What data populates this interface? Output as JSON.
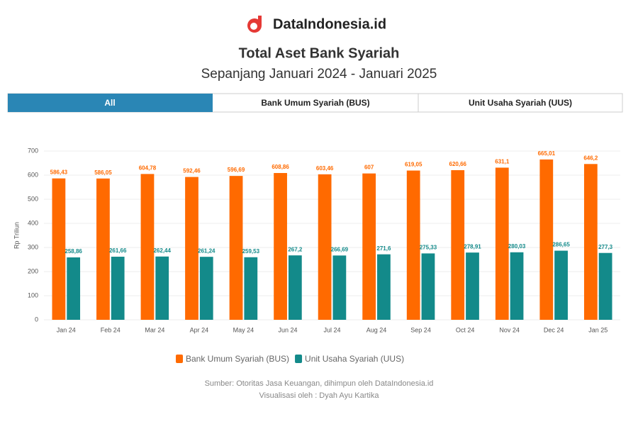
{
  "header": {
    "brand": "DataIndonesia.id",
    "title": "Total Aset Bank Syariah",
    "subtitle": "Sepanjang Januari 2024 - Januari 2025"
  },
  "tabs": [
    "All",
    "Bank Umum Syariah (BUS)",
    "Unit Usaha Syariah (UUS)"
  ],
  "chart_data": {
    "type": "bar",
    "y_label": "Rp Triliun",
    "categories": [
      "Jan 24",
      "Feb 24",
      "Mar 24",
      "Apr 24",
      "May 24",
      "Jun 24",
      "Jul 24",
      "Aug 24",
      "Sep 24",
      "Oct 24",
      "Nov 24",
      "Dec 24",
      "Jan 25"
    ],
    "series": [
      {
        "name": "Bank Umum Syariah (BUS)",
        "color": "#ff6a00",
        "values": [
          586.43,
          586.05,
          604.78,
          592.46,
          596.69,
          608.86,
          603.46,
          607,
          619.05,
          620.66,
          631.1,
          665.01,
          646.2
        ],
        "value_labels": [
          "586,43",
          "586,05",
          "604,78",
          "592,46",
          "596,69",
          "608,86",
          "603,46",
          "607",
          "619,05",
          "620,66",
          "631,1",
          "665,01",
          "646,2"
        ]
      },
      {
        "name": "Unit Usaha Syariah (UUS)",
        "color": "#138a8a",
        "values": [
          258.86,
          261.66,
          262.44,
          261.24,
          259.53,
          267.2,
          266.69,
          271.6,
          275.33,
          278.91,
          280.03,
          286.65,
          277.3
        ],
        "value_labels": [
          "258,86",
          "261,66",
          "262,44",
          "261,24",
          "259,53",
          "267,2",
          "266,69",
          "271,6",
          "275,33",
          "278,91",
          "280,03",
          "286,65",
          "277,3"
        ]
      }
    ],
    "ylim": [
      0,
      700
    ],
    "yticks": [
      0,
      100,
      200,
      300,
      400,
      500,
      600,
      700
    ],
    "grid": true
  },
  "footer": [
    "Sumber: Otoritas Jasa Keuangan, dihimpun oleh DataIndonesia.id",
    "Visualisasi oleh : Dyah Ayu Kartika"
  ]
}
